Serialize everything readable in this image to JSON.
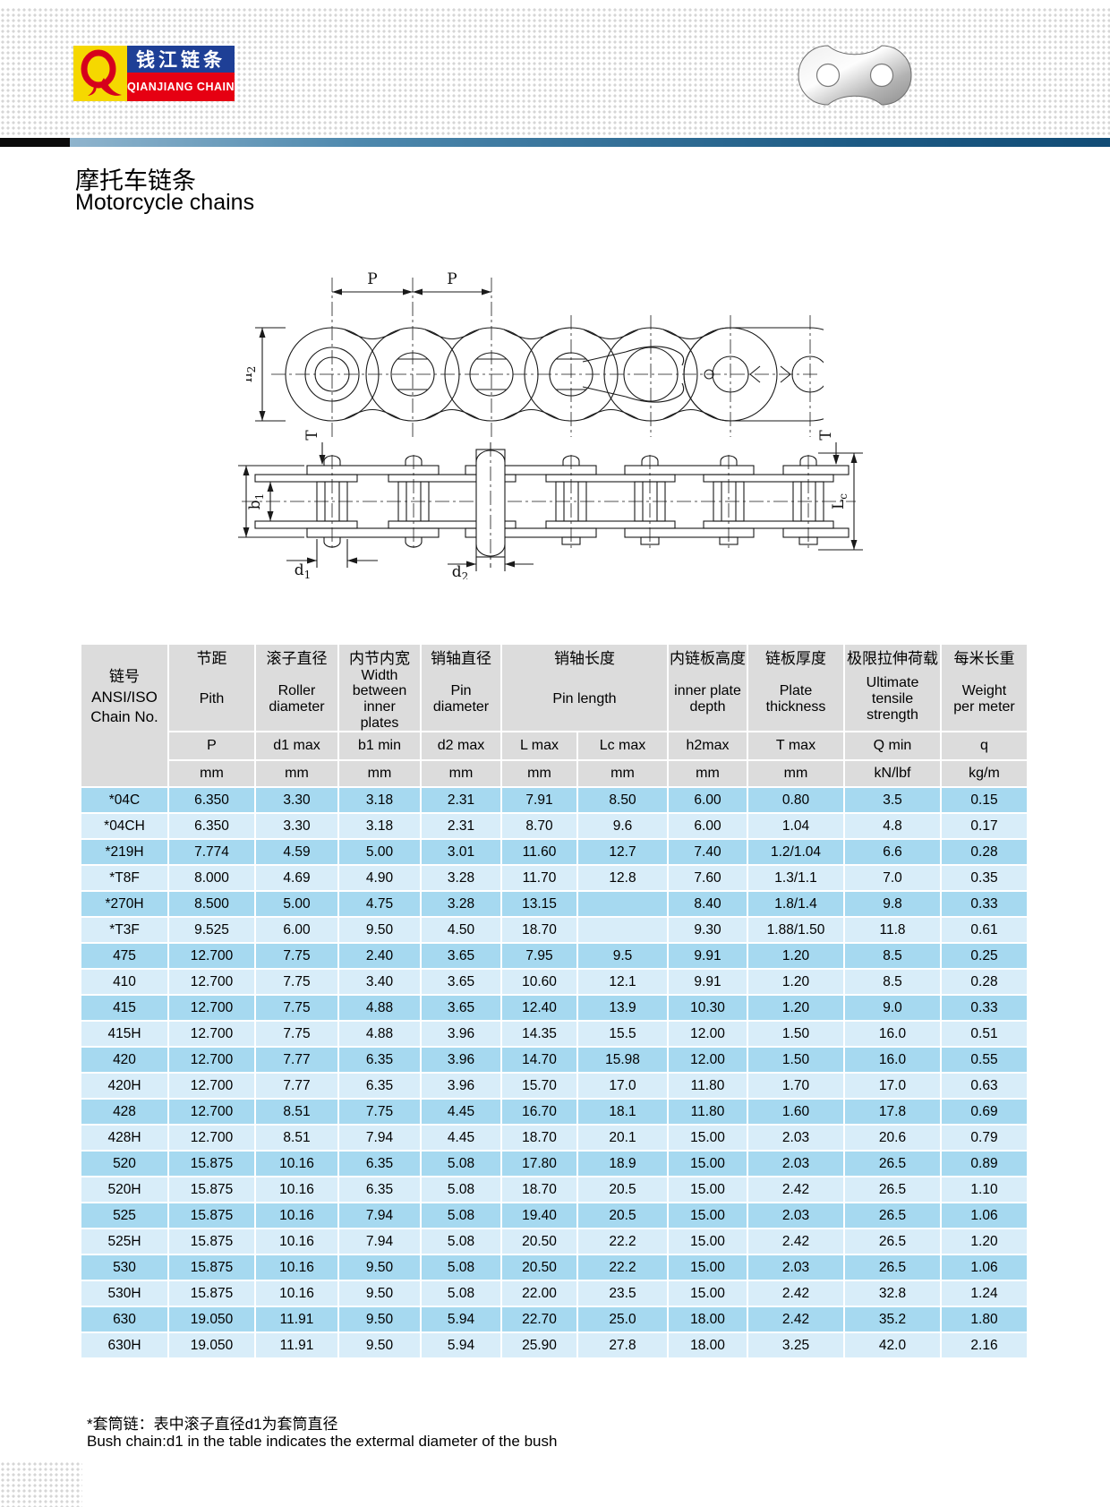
{
  "brand": {
    "monogram": "Q",
    "name_cn": "钱江链条",
    "name_en": "QIANJIANG CHAIN"
  },
  "page": {
    "title_cn": "摩托车链条",
    "title_en": "Motorcycle chains"
  },
  "diagrams": {
    "side_view": {
      "pitch1": "P",
      "pitch2": "P",
      "h_main": "h",
      "h_sub": "2"
    },
    "top_view": {
      "t_left": "T",
      "t_right": "T",
      "b_main": "b",
      "b_sub": "1",
      "d1_main": "d",
      "d1_sub": "1",
      "d2_main": "d",
      "d2_sub": "2",
      "lc_main": "L",
      "lc_sub": "c"
    }
  },
  "table": {
    "columns": [
      {
        "cn": "链号",
        "en": "ANSI/ISO\nChain No.",
        "full": "链号\nANSI/ISO\nChain No."
      },
      {
        "cn": "节距",
        "en": "Pith"
      },
      {
        "cn": "滚子直径",
        "en": "Roller\ndiameter"
      },
      {
        "cn": "内节内宽",
        "en": "Width\nbetween\ninner\nplates"
      },
      {
        "cn": "销轴直径",
        "en": "Pin\ndiameter"
      },
      {
        "cn": "销轴长度",
        "en": "Pin length"
      },
      {
        "cn": "内链板高度",
        "en": "inner plate\ndepth"
      },
      {
        "cn": "链板厚度",
        "en": "Plate\nthickness"
      },
      {
        "cn": "极限拉伸荷载",
        "en": "Ultimate\ntensile\nstrength"
      },
      {
        "cn": "每米长重",
        "en": "Weight\nper meter"
      }
    ],
    "symbols": [
      "P",
      "d1 max",
      "b1 min",
      "d2 max",
      "L max",
      "Lc max",
      "h2max",
      "T max",
      "Q min",
      "q"
    ],
    "units": [
      "mm",
      "mm",
      "mm",
      "mm",
      "mm",
      "mm",
      "mm",
      "mm",
      "kN/lbf",
      "kg/m"
    ],
    "rows": [
      [
        "*04C",
        "6.350",
        "3.30",
        "3.18",
        "2.31",
        "7.91",
        "8.50",
        "6.00",
        "0.80",
        "3.5",
        "0.15"
      ],
      [
        "*04CH",
        "6.350",
        "3.30",
        "3.18",
        "2.31",
        "8.70",
        "9.6",
        "6.00",
        "1.04",
        "4.8",
        "0.17"
      ],
      [
        "*219H",
        "7.774",
        "4.59",
        "5.00",
        "3.01",
        "11.60",
        "12.7",
        "7.40",
        "1.2/1.04",
        "6.6",
        "0.28"
      ],
      [
        "*T8F",
        "8.000",
        "4.69",
        "4.90",
        "3.28",
        "11.70",
        "12.8",
        "7.60",
        "1.3/1.1",
        "7.0",
        "0.35"
      ],
      [
        "*270H",
        "8.500",
        "5.00",
        "4.75",
        "3.28",
        "13.15",
        "",
        "8.40",
        "1.8/1.4",
        "9.8",
        "0.33"
      ],
      [
        "*T3F",
        "9.525",
        "6.00",
        "9.50",
        "4.50",
        "18.70",
        "",
        "9.30",
        "1.88/1.50",
        "11.8",
        "0.61"
      ],
      [
        "475",
        "12.700",
        "7.75",
        "2.40",
        "3.65",
        "7.95",
        "9.5",
        "9.91",
        "1.20",
        "8.5",
        "0.25"
      ],
      [
        "410",
        "12.700",
        "7.75",
        "3.40",
        "3.65",
        "10.60",
        "12.1",
        "9.91",
        "1.20",
        "8.5",
        "0.28"
      ],
      [
        "415",
        "12.700",
        "7.75",
        "4.88",
        "3.65",
        "12.40",
        "13.9",
        "10.30",
        "1.20",
        "9.0",
        "0.33"
      ],
      [
        "415H",
        "12.700",
        "7.75",
        "4.88",
        "3.96",
        "14.35",
        "15.5",
        "12.00",
        "1.50",
        "16.0",
        "0.51"
      ],
      [
        "420",
        "12.700",
        "7.77",
        "6.35",
        "3.96",
        "14.70",
        "15.98",
        "12.00",
        "1.50",
        "16.0",
        "0.55"
      ],
      [
        "420H",
        "12.700",
        "7.77",
        "6.35",
        "3.96",
        "15.70",
        "17.0",
        "11.80",
        "1.70",
        "17.0",
        "0.63"
      ],
      [
        "428",
        "12.700",
        "8.51",
        "7.75",
        "4.45",
        "16.70",
        "18.1",
        "11.80",
        "1.60",
        "17.8",
        "0.69"
      ],
      [
        "428H",
        "12.700",
        "8.51",
        "7.94",
        "4.45",
        "18.70",
        "20.1",
        "15.00",
        "2.03",
        "20.6",
        "0.79"
      ],
      [
        "520",
        "15.875",
        "10.16",
        "6.35",
        "5.08",
        "17.80",
        "18.9",
        "15.00",
        "2.03",
        "26.5",
        "0.89"
      ],
      [
        "520H",
        "15.875",
        "10.16",
        "6.35",
        "5.08",
        "18.70",
        "20.5",
        "15.00",
        "2.42",
        "26.5",
        "1.10"
      ],
      [
        "525",
        "15.875",
        "10.16",
        "7.94",
        "5.08",
        "19.40",
        "20.5",
        "15.00",
        "2.03",
        "26.5",
        "1.06"
      ],
      [
        "525H",
        "15.875",
        "10.16",
        "7.94",
        "5.08",
        "20.50",
        "22.2",
        "15.00",
        "2.42",
        "26.5",
        "1.20"
      ],
      [
        "530",
        "15.875",
        "10.16",
        "9.50",
        "5.08",
        "20.50",
        "22.2",
        "15.00",
        "2.03",
        "26.5",
        "1.06"
      ],
      [
        "530H",
        "15.875",
        "10.16",
        "9.50",
        "5.08",
        "22.00",
        "23.5",
        "15.00",
        "2.42",
        "32.8",
        "1.24"
      ],
      [
        "630",
        "19.050",
        "11.91",
        "9.50",
        "5.94",
        "22.70",
        "25.0",
        "18.00",
        "2.42",
        "35.2",
        "1.80"
      ],
      [
        "630H",
        "19.050",
        "11.91",
        "9.50",
        "5.94",
        "25.90",
        "27.8",
        "18.00",
        "3.25",
        "42.0",
        "2.16"
      ]
    ]
  },
  "footnotes": {
    "cn": "*套筒链：表中滚子直径d1为套筒直径",
    "en": "Bush chain:d1 in the table indicates the extermal diameter of the bush"
  }
}
